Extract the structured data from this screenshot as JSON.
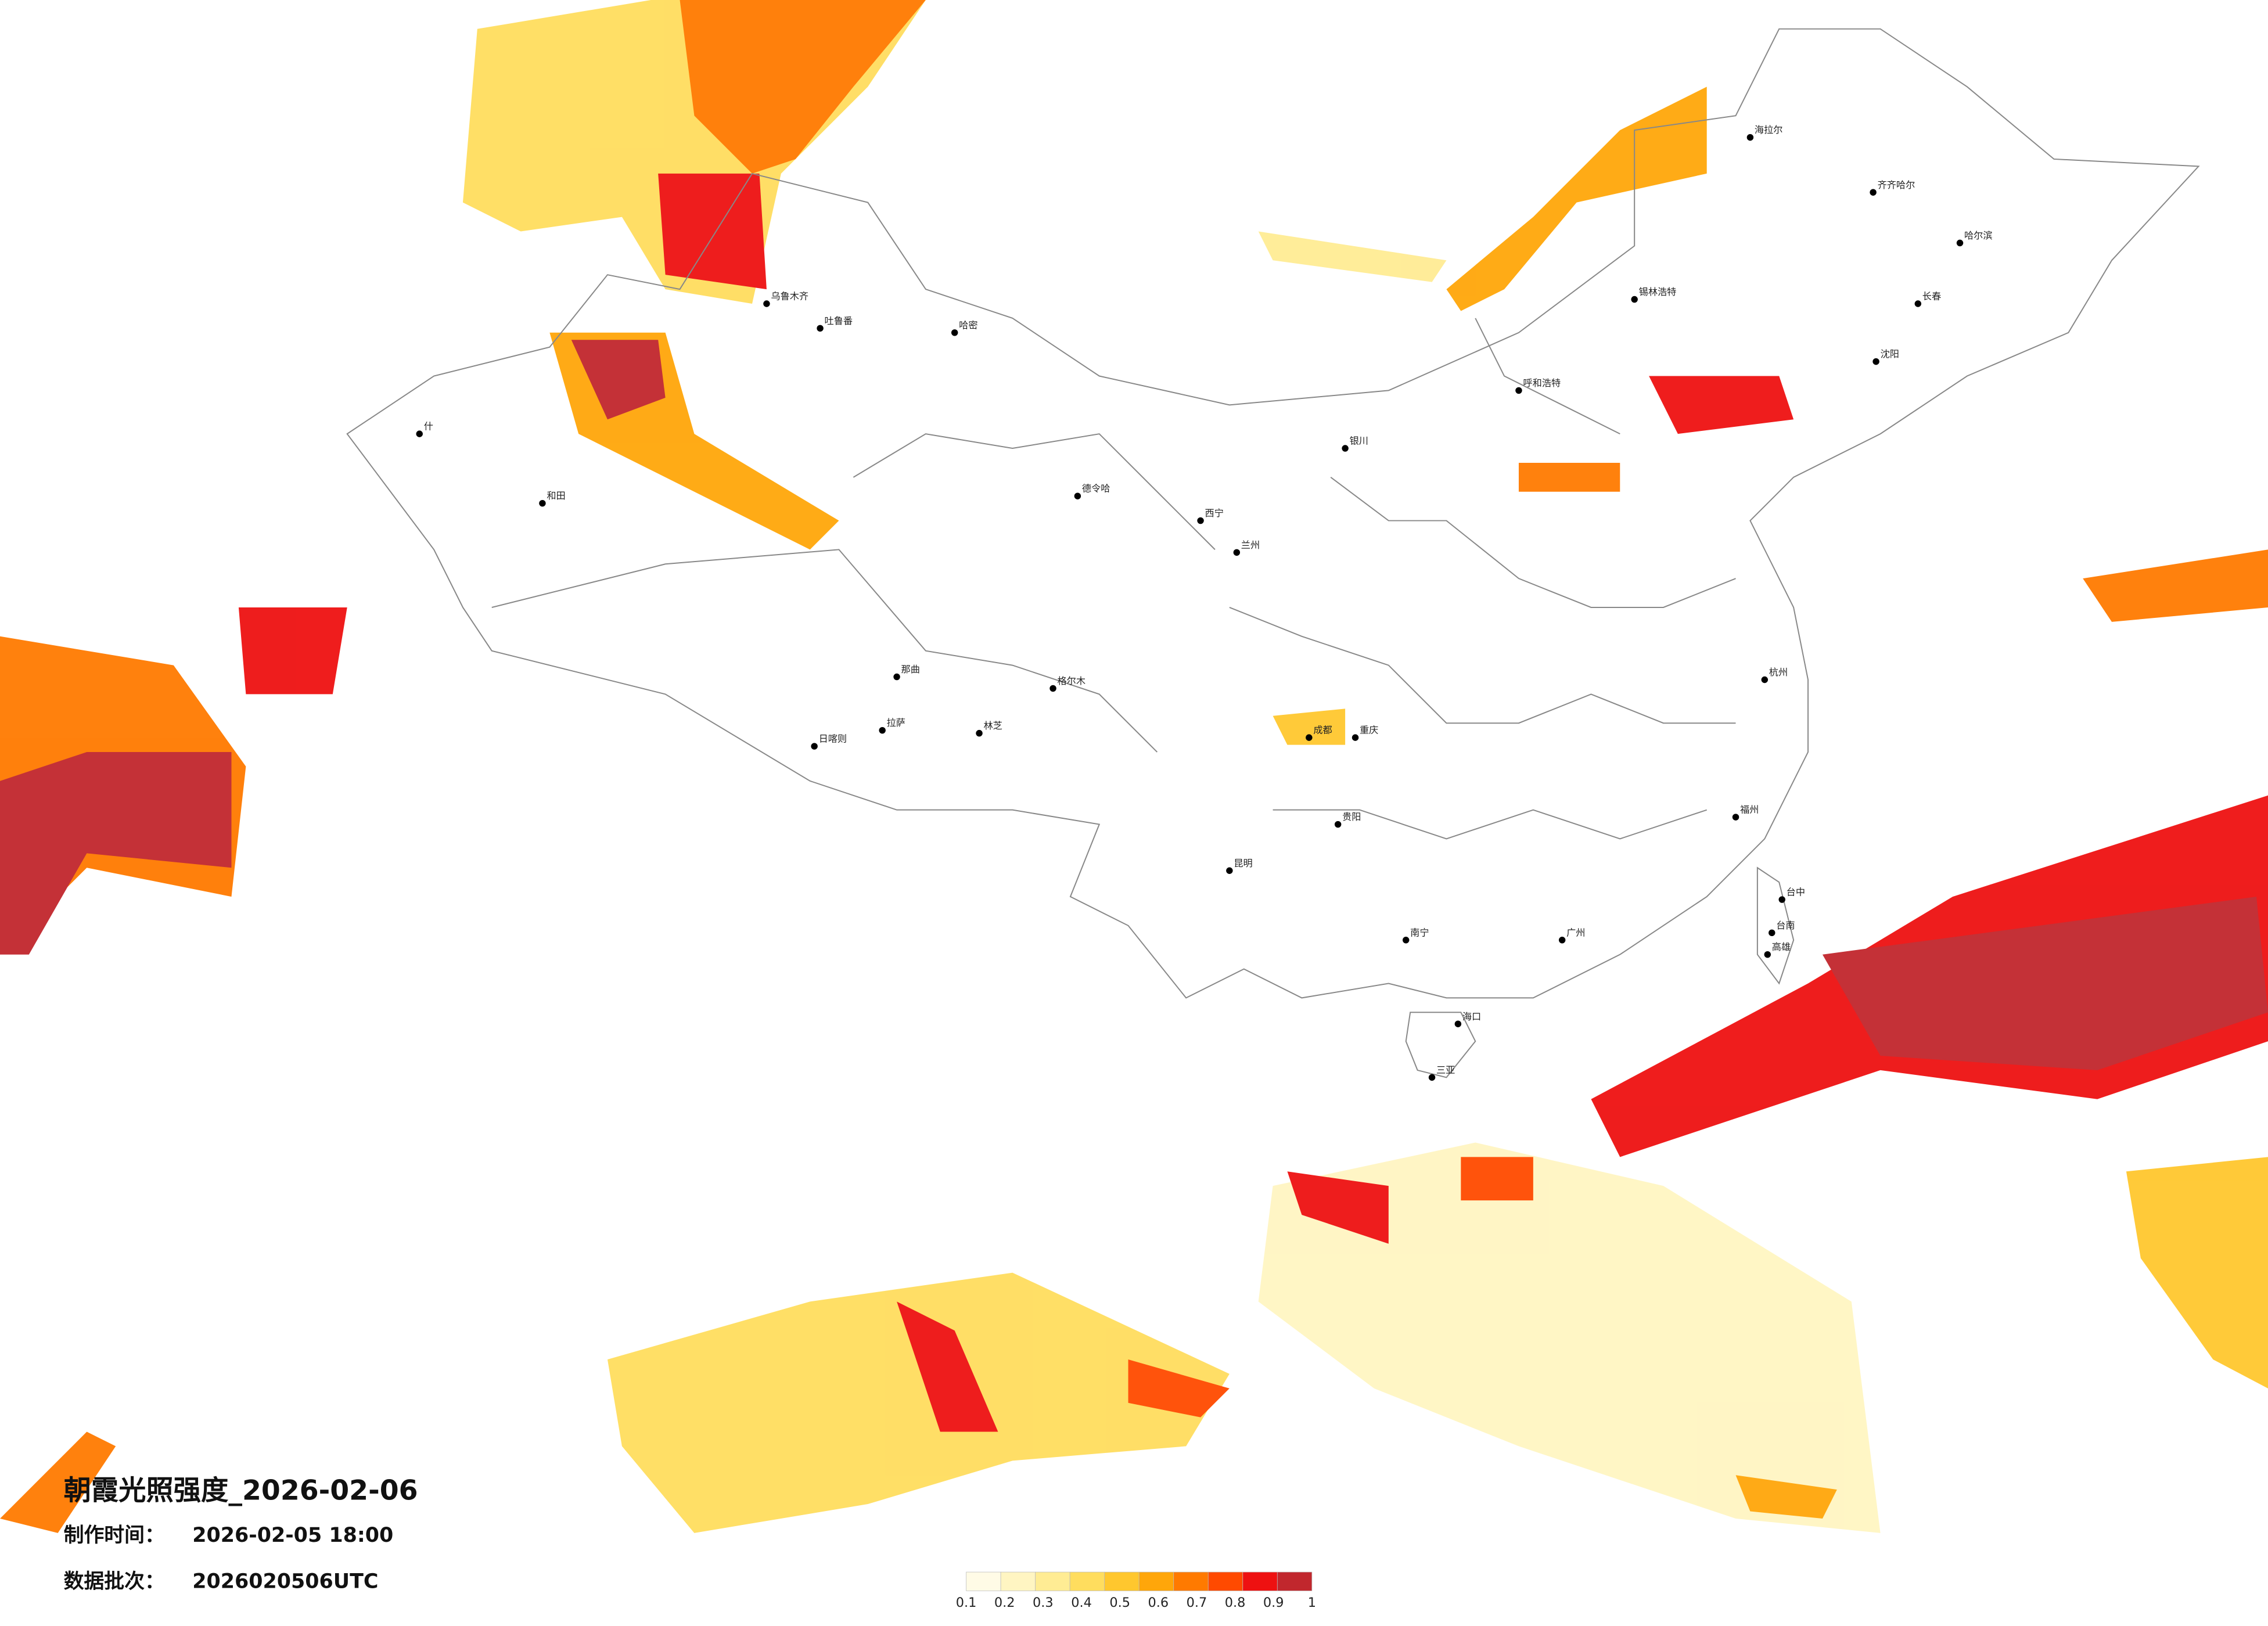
{
  "header": {
    "title": "朝霞光照强度_2026-02-06",
    "made_label": "制作时间：",
    "made_time": "2026-02-05 18:00",
    "batch_label": "数据批次：",
    "batch": "2026020506UTC"
  },
  "legend": {
    "ticks": [
      0.1,
      0.2,
      0.3,
      0.4,
      0.5,
      0.6,
      0.7,
      0.8,
      0.9,
      1
    ],
    "colors": [
      "#fffbe6",
      "#fff5c2",
      "#ffec94",
      "#ffdd5e",
      "#ffc72e",
      "#ffa60a",
      "#ff7a00",
      "#ff4a00",
      "#ee1111",
      "#c1272d"
    ]
  },
  "cities": [
    "什",
    "和田",
    "乌鲁木齐",
    "吐鲁番",
    "哈密",
    "德令哈",
    "格尔木",
    "那曲",
    "拉萨",
    "日喀则",
    "林芝",
    "西宁",
    "兰州",
    "银川",
    "呼和浩特",
    "锡林浩特",
    "海拉尔",
    "齐齐哈尔",
    "哈尔滨",
    "长春",
    "沈阳",
    "成都",
    "重庆",
    "贵阳",
    "昆明",
    "南宁",
    "海口",
    "三亚",
    "广州",
    "福州",
    "杭州",
    "台中",
    "台南",
    "高雄"
  ]
}
